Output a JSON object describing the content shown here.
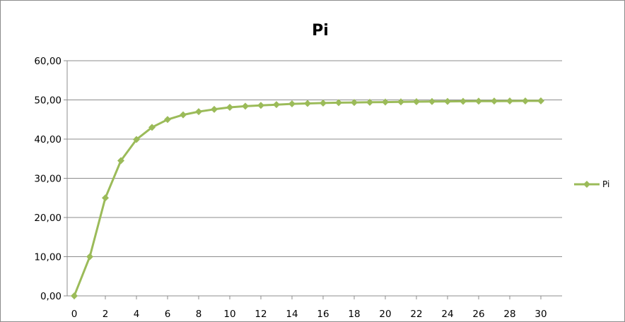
{
  "chart_data": {
    "type": "line",
    "title": "Pi",
    "xlabel": "",
    "ylabel": "",
    "x": [
      0,
      1,
      2,
      3,
      4,
      5,
      6,
      7,
      8,
      9,
      10,
      11,
      12,
      13,
      14,
      15,
      16,
      17,
      18,
      19,
      20,
      21,
      22,
      23,
      24,
      25,
      26,
      27,
      28,
      29,
      30
    ],
    "series": [
      {
        "name": "Pi",
        "color": "#9bbb59",
        "values": [
          0.0,
          10.0,
          25.0,
          34.5,
          39.9,
          43.0,
          45.0,
          46.2,
          47.0,
          47.6,
          48.1,
          48.4,
          48.6,
          48.8,
          49.0,
          49.1,
          49.2,
          49.3,
          49.35,
          49.4,
          49.45,
          49.5,
          49.55,
          49.6,
          49.62,
          49.65,
          49.68,
          49.7,
          49.72,
          49.74,
          49.75
        ]
      }
    ],
    "xlim": [
      0,
      30
    ],
    "ylim": [
      0,
      60
    ],
    "x_tick_labels": [
      "0",
      "2",
      "4",
      "6",
      "8",
      "10",
      "12",
      "14",
      "16",
      "18",
      "20",
      "22",
      "24",
      "26",
      "28",
      "30"
    ],
    "y_tick_labels": [
      "0,00",
      "10,00",
      "20,00",
      "30,00",
      "40,00",
      "50,00",
      "60,00"
    ],
    "grid": "horizontal",
    "legend_position": "right"
  }
}
